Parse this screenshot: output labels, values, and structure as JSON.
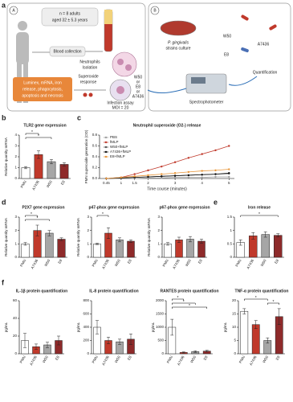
{
  "panel_labels": [
    "a",
    "b",
    "c",
    "d",
    "e",
    "f"
  ],
  "diagram": {
    "panel_a_marker": "A",
    "panel_b_marker": "B",
    "participants": [
      "n = 8 adults",
      "aged 32 ± 5.3 years"
    ],
    "blood_collection": "Blood collection",
    "neutrophil_isolation": [
      "Neutrophils",
      "Isolation"
    ],
    "assays": [
      "Luminex, mRNA, iron",
      "release, phagocytosis,",
      "apoptosis and necrosis"
    ],
    "superoxide": [
      "Superoxide",
      "response"
    ],
    "infection": [
      "Infection assay",
      "MOI = 20"
    ],
    "strain_choice": [
      "W50",
      "or",
      "E8",
      "or",
      "A7436"
    ],
    "culture": [
      "P. gingivalis",
      "strains culture"
    ],
    "strains": [
      "W50",
      "A7436",
      "E8"
    ],
    "quantification": "Quantification",
    "spectrophotometer": "Spectrophotometer"
  },
  "chart_data": [
    {
      "type": "bar",
      "title": "TLR2 gene expression",
      "y_label": "Relative quantity mRNA",
      "categories": [
        "PMN",
        "A7436",
        "W50",
        "E8"
      ],
      "values": [
        1,
        2.2,
        1.55,
        1.3
      ],
      "errors": [
        0.1,
        0.35,
        0.2,
        0.15
      ],
      "colors": [
        "#ffffff",
        "#c0392b",
        "#a6a6a6",
        "#8e2a2a"
      ],
      "ylim": [
        0,
        4
      ],
      "yticks": [
        0,
        1,
        2,
        3,
        4
      ],
      "significance": [
        {
          "label": "*",
          "groups": [
            "PMN",
            "A7436"
          ]
        },
        {
          "label": "*",
          "groups": [
            "PMN",
            "W50"
          ]
        }
      ]
    },
    {
      "type": "line",
      "title": "Neutrophil superoxide (O2-) release",
      "x_label": "Time course (minutes)",
      "y_label": "PMN superoxide generation (OD)",
      "x": [
        0.45,
        1,
        1.5,
        2,
        2.5,
        3,
        3.5,
        4,
        4.5,
        5
      ],
      "xlim": [
        0.2,
        5.2
      ],
      "xticks": [
        0.45,
        1,
        1.5,
        2,
        3,
        4,
        5
      ],
      "ylim": [
        0,
        0.8
      ],
      "yticks": [
        {
          "value": 0,
          "label": "0.0"
        },
        {
          "value": 0.2,
          "label": "0.2"
        },
        {
          "value": 0.4,
          "label": "0.4"
        },
        {
          "value": 0.6,
          "label": "0.6"
        },
        {
          "value": 0.8,
          "label": "0.8"
        }
      ],
      "legend": "upper-left",
      "series": [
        {
          "name": "PBS",
          "color": "#9e9e9e",
          "values": [
            0,
            0,
            0,
            0.01,
            0.01,
            0.02,
            0.02,
            0.02,
            0.03,
            0.03
          ]
        },
        {
          "name": "fMLP",
          "color": "#c0392b",
          "values": [
            0,
            0.02,
            0.08,
            0.15,
            0.22,
            0.3,
            0.38,
            0.45,
            0.52,
            0.6
          ]
        },
        {
          "name": "W50+fMLP",
          "color": "#555555",
          "values": [
            0,
            0.01,
            0.02,
            0.03,
            0.04,
            0.05,
            0.06,
            0.07,
            0.08,
            0.09
          ]
        },
        {
          "name": "A7436+fMLP",
          "color": "#111111",
          "values": [
            0,
            0.01,
            0.02,
            0.03,
            0.04,
            0.05,
            0.06,
            0.07,
            0.08,
            0.1
          ]
        },
        {
          "name": "E8+fMLP",
          "color": "#e8963a",
          "values": [
            0,
            0.02,
            0.04,
            0.06,
            0.08,
            0.1,
            0.12,
            0.14,
            0.15,
            0.17
          ]
        }
      ]
    },
    {
      "type": "bar",
      "title": "P2X7 gene expression",
      "y_label": "Relative quantity mRNA",
      "categories": [
        "PMN",
        "A7436",
        "W50",
        "E8"
      ],
      "values": [
        1,
        2,
        1.8,
        1.35
      ],
      "errors": [
        0.1,
        0.4,
        0.2,
        0.1
      ],
      "colors": [
        "#ffffff",
        "#c0392b",
        "#a6a6a6",
        "#8e2a2a"
      ],
      "ylim": [
        0,
        3
      ],
      "yticks": [
        0,
        1,
        2,
        3
      ],
      "significance": [
        {
          "label": "*",
          "groups": [
            "PMN",
            "A7436"
          ]
        },
        {
          "label": "*",
          "groups": [
            "PMN",
            "W50"
          ]
        }
      ]
    },
    {
      "type": "bar",
      "title": "p47-phox gene expression",
      "y_label": "Relative quantity mRNA",
      "categories": [
        "PMN",
        "A7436",
        "W50",
        "E8"
      ],
      "values": [
        1,
        1.8,
        1.3,
        1.2
      ],
      "errors": [
        0.05,
        0.4,
        0.15,
        0.1
      ],
      "colors": [
        "#ffffff",
        "#c0392b",
        "#a6a6a6",
        "#8e2a2a"
      ],
      "ylim": [
        0,
        3
      ],
      "yticks": [
        0,
        1,
        2,
        3
      ],
      "significance": [
        {
          "label": "*",
          "groups": [
            "PMN",
            "A7436"
          ]
        }
      ]
    },
    {
      "type": "bar",
      "title": "p67-phox gene expression",
      "y_label": "Relative quantity mRNA",
      "categories": [
        "PMN",
        "A7436",
        "W50",
        "E8"
      ],
      "values": [
        1,
        1.3,
        1.35,
        1.2
      ],
      "errors": [
        0.1,
        0.2,
        0.2,
        0.15
      ],
      "colors": [
        "#ffffff",
        "#c0392b",
        "#a6a6a6",
        "#8e2a2a"
      ],
      "ylim": [
        0,
        3
      ],
      "yticks": [
        0,
        1,
        2,
        3
      ],
      "significance": []
    },
    {
      "type": "bar",
      "title": "Iron release",
      "categories": [
        "PMN",
        "A7436",
        "W50",
        "E8"
      ],
      "values": [
        0.55,
        0.8,
        0.85,
        0.82
      ],
      "errors": [
        0.1,
        0.12,
        0.1,
        0.06
      ],
      "colors": [
        "#ffffff",
        "#c0392b",
        "#a6a6a6",
        "#8e2a2a"
      ],
      "ylim": [
        0,
        1.5
      ],
      "yticks": [
        0,
        0.5,
        1,
        1.5
      ],
      "significance": [
        {
          "label": "*",
          "groups": [
            "PMN",
            "E8"
          ]
        }
      ]
    },
    {
      "type": "bar",
      "title": "IL-1β protein quantification",
      "y_label": "pg/mL",
      "categories": [
        "PMN",
        "A7436",
        "W50",
        "E8"
      ],
      "values": [
        15,
        8,
        10,
        15
      ],
      "errors": [
        8,
        3,
        3,
        5
      ],
      "colors": [
        "#ffffff",
        "#c0392b",
        "#a6a6a6",
        "#8e2a2a"
      ],
      "ylim": [
        0,
        60
      ],
      "yticks": [
        0,
        20,
        40,
        60
      ],
      "significance": []
    },
    {
      "type": "bar",
      "title": "IL-8 protein quantification",
      "y_label": "pg/mL",
      "categories": [
        "PMN",
        "A7436",
        "W50",
        "E8"
      ],
      "values": [
        400,
        200,
        180,
        220
      ],
      "errors": [
        100,
        50,
        40,
        80
      ],
      "colors": [
        "#ffffff",
        "#c0392b",
        "#a6a6a6",
        "#8e2a2a"
      ],
      "ylim": [
        0,
        800
      ],
      "yticks": [
        0,
        200,
        400,
        600,
        800
      ],
      "significance": []
    },
    {
      "type": "bar",
      "title": "RANTES protein quantification",
      "y_label": "pg/mL",
      "categories": [
        "PMN",
        "A7436",
        "W50",
        "E8"
      ],
      "values": [
        1000,
        50,
        80,
        100
      ],
      "errors": [
        300,
        20,
        30,
        30
      ],
      "colors": [
        "#ffffff",
        "#c0392b",
        "#a6a6a6",
        "#8e2a2a"
      ],
      "ylim": [
        0,
        2000
      ],
      "yticks": [
        0,
        500,
        1000,
        1500,
        2000
      ],
      "significance": [
        {
          "label": "*",
          "groups": [
            "PMN",
            "A7436"
          ]
        },
        {
          "label": "*",
          "groups": [
            "PMN",
            "W50"
          ]
        },
        {
          "label": "*",
          "groups": [
            "PMN",
            "E8"
          ]
        }
      ]
    },
    {
      "type": "bar",
      "title": "TNF-α protein quantification",
      "y_label": "pg/mL",
      "categories": [
        "PMN",
        "A7436",
        "W50",
        "E8"
      ],
      "values": [
        16,
        11,
        5,
        14
      ],
      "errors": [
        1,
        1.5,
        1,
        3
      ],
      "colors": [
        "#ffffff",
        "#c0392b",
        "#a6a6a6",
        "#8e2a2a"
      ],
      "ylim": [
        0,
        20
      ],
      "yticks": [
        0,
        5,
        10,
        15,
        20
      ],
      "significance": [
        {
          "label": "*",
          "groups": [
            "PMN",
            "W50"
          ]
        },
        {
          "label": "*",
          "groups": [
            "W50",
            "E8"
          ]
        }
      ]
    }
  ]
}
